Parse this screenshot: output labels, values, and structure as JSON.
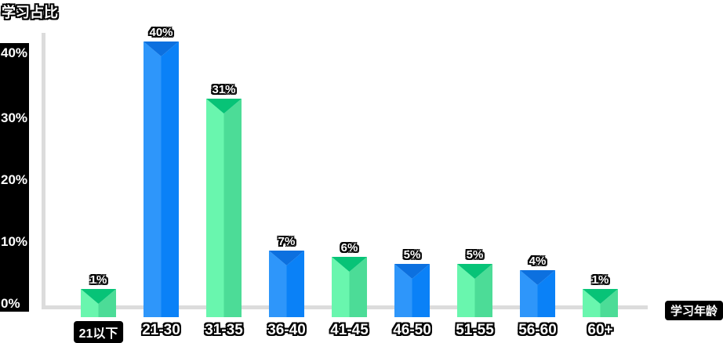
{
  "title": "学习占比",
  "x_axis_title": "学习年龄",
  "y_axis": {
    "ticks": [
      "40%",
      "30%",
      "20%",
      "10%",
      "0%"
    ]
  },
  "chart_data": {
    "type": "bar",
    "title": "学习占比",
    "xlabel": "学习年龄",
    "ylabel": "学习占比",
    "categories": [
      "21以下",
      "21-30",
      "31-35",
      "36-40",
      "41-45",
      "46-50",
      "51-55",
      "56-60",
      "60+"
    ],
    "values": [
      1,
      40,
      31,
      7,
      6,
      5,
      5,
      4,
      1
    ],
    "value_labels": [
      "1%",
      "40%",
      "31%",
      "7%",
      "6%",
      "5%",
      "5%",
      "4%",
      "1%"
    ],
    "bar_color_pattern": [
      "green",
      "blue",
      "green",
      "blue",
      "green",
      "blue",
      "green",
      "blue",
      "green"
    ],
    "highlighted_category": "21以下",
    "ylim": [
      0,
      40
    ],
    "grid": false,
    "legend": false
  },
  "colors": {
    "blue": {
      "left": "#2E96FA",
      "right": "#0A81F7",
      "top": "#0C70DF"
    },
    "green": {
      "left": "#69F6AE",
      "right": "#4CDC97",
      "top": "#07C377"
    },
    "axis_line": "#DCDCDC",
    "label_bg": "#000000",
    "label_fg": "#FFFFFF",
    "background": "#FFFFFF"
  }
}
